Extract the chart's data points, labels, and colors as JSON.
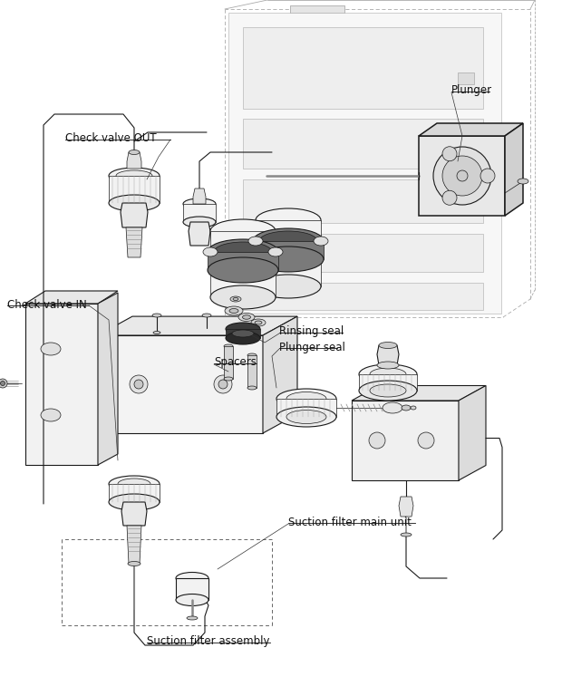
{
  "bg_color": "#ffffff",
  "line_color": "#1a1a1a",
  "label_color": "#000000",
  "gray_light": "#f2f2f2",
  "gray_mid": "#cccccc",
  "gray_dark": "#888888",
  "labels": {
    "check_valve_out": "Check valve OUT",
    "check_valve_in": "Check valve IN",
    "plunger": "Plunger",
    "rinsing_seal": "Rinsing seal",
    "plunger_seal": "Plunger seal",
    "spacers": "Spacers",
    "suction_filter_main": "Suction filter main unit",
    "suction_filter_assembly": "Suction filter assembly"
  }
}
